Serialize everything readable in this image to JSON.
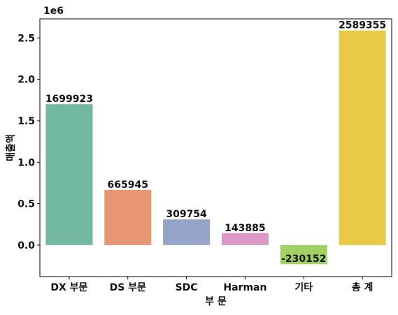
{
  "chart_data": {
    "type": "bar",
    "categories": [
      "DX 부문",
      "DS 부문",
      "SDC",
      "Harman",
      "기타",
      "총 계"
    ],
    "values": [
      1699923,
      665945,
      309754,
      143885,
      -230152,
      2589355
    ],
    "value_labels": [
      "1699923",
      "665945",
      "309754",
      "143885",
      "-230152",
      "2589355"
    ],
    "colors": [
      "#73b8a1",
      "#e99675",
      "#95a5c8",
      "#dc97c6",
      "#a3d161",
      "#e8ca47"
    ],
    "xlabel": "부 문",
    "ylabel": "매출액",
    "y_offset_label": "1e6",
    "ylim": [
      -380000,
      2730000
    ],
    "yticks": [
      0,
      500000,
      1000000,
      1500000,
      2000000,
      2500000
    ],
    "ytick_labels": [
      "0.0",
      "0.5",
      "1.0",
      "1.5",
      "2.0",
      "2.5"
    ],
    "grid": false
  }
}
